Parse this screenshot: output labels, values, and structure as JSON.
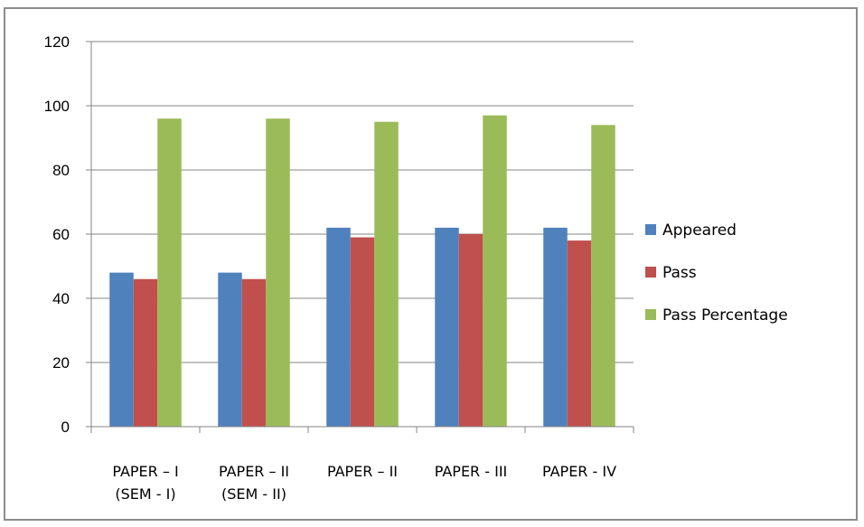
{
  "chart_data": {
    "type": "bar",
    "categories": [
      [
        "PAPER – I",
        "(SEM - I)"
      ],
      [
        "PAPER – II",
        "(SEM - II)"
      ],
      [
        "PAPER – II"
      ],
      [
        "PAPER - III"
      ],
      [
        "PAPER - IV"
      ]
    ],
    "series": [
      {
        "name": "Appeared",
        "color": "#4f81bd",
        "values": [
          48,
          48,
          62,
          62,
          62
        ]
      },
      {
        "name": "Pass",
        "color": "#c0504d",
        "values": [
          46,
          46,
          59,
          60,
          58
        ]
      },
      {
        "name": "Pass Percentage",
        "color": "#9bbb59",
        "values": [
          96,
          96,
          95,
          97,
          94
        ]
      }
    ],
    "ylim": [
      0,
      120
    ],
    "yticks": [
      0,
      20,
      40,
      60,
      80,
      100,
      120
    ],
    "grid": true,
    "legend_position": "right"
  }
}
